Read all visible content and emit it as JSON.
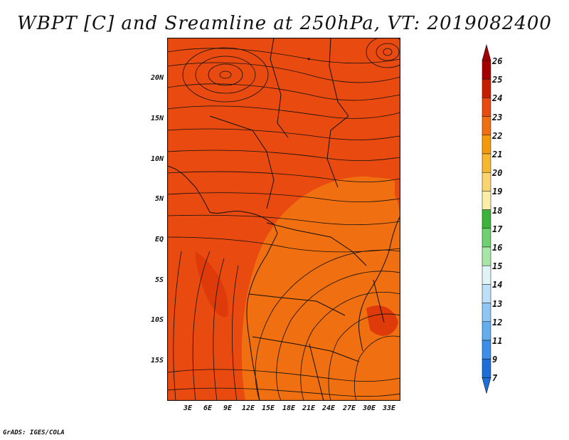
{
  "title": "WBPT [C] and Sreamline at 250hPa, VT: 2019082400",
  "credit": "GrADS: IGES/COLA",
  "map": {
    "y_ticks": [
      "20N",
      "15N",
      "10N",
      "5N",
      "EQ",
      "5S",
      "10S",
      "15S"
    ],
    "x_ticks": [
      "3E",
      "6E",
      "9E",
      "12E",
      "15E",
      "18E",
      "21E",
      "24E",
      "27E",
      "30E",
      "33E"
    ],
    "colors": {
      "field_main": "#e84a10",
      "field_warm": "#f06f10",
      "field_hot": "#df3a0a",
      "lines": "#111111"
    }
  },
  "colorbar": {
    "labels": [
      "26",
      "25",
      "24",
      "23",
      "22",
      "21",
      "20",
      "19",
      "18",
      "17",
      "16",
      "15",
      "14",
      "13",
      "12",
      "11",
      "9",
      "7"
    ],
    "colors": [
      "#a50000",
      "#c81e00",
      "#e84a10",
      "#f06f10",
      "#f59a0a",
      "#f7b830",
      "#fad46e",
      "#fbeea8",
      "#3cb43c",
      "#6fd06f",
      "#a8e6a8",
      "#e0f4f8",
      "#bde0f8",
      "#8ec6f5",
      "#64aef0",
      "#3c8ee8",
      "#1e6ed8"
    ],
    "min_arrow_color": "#1e6ed8",
    "max_arrow_color": "#a50000"
  }
}
